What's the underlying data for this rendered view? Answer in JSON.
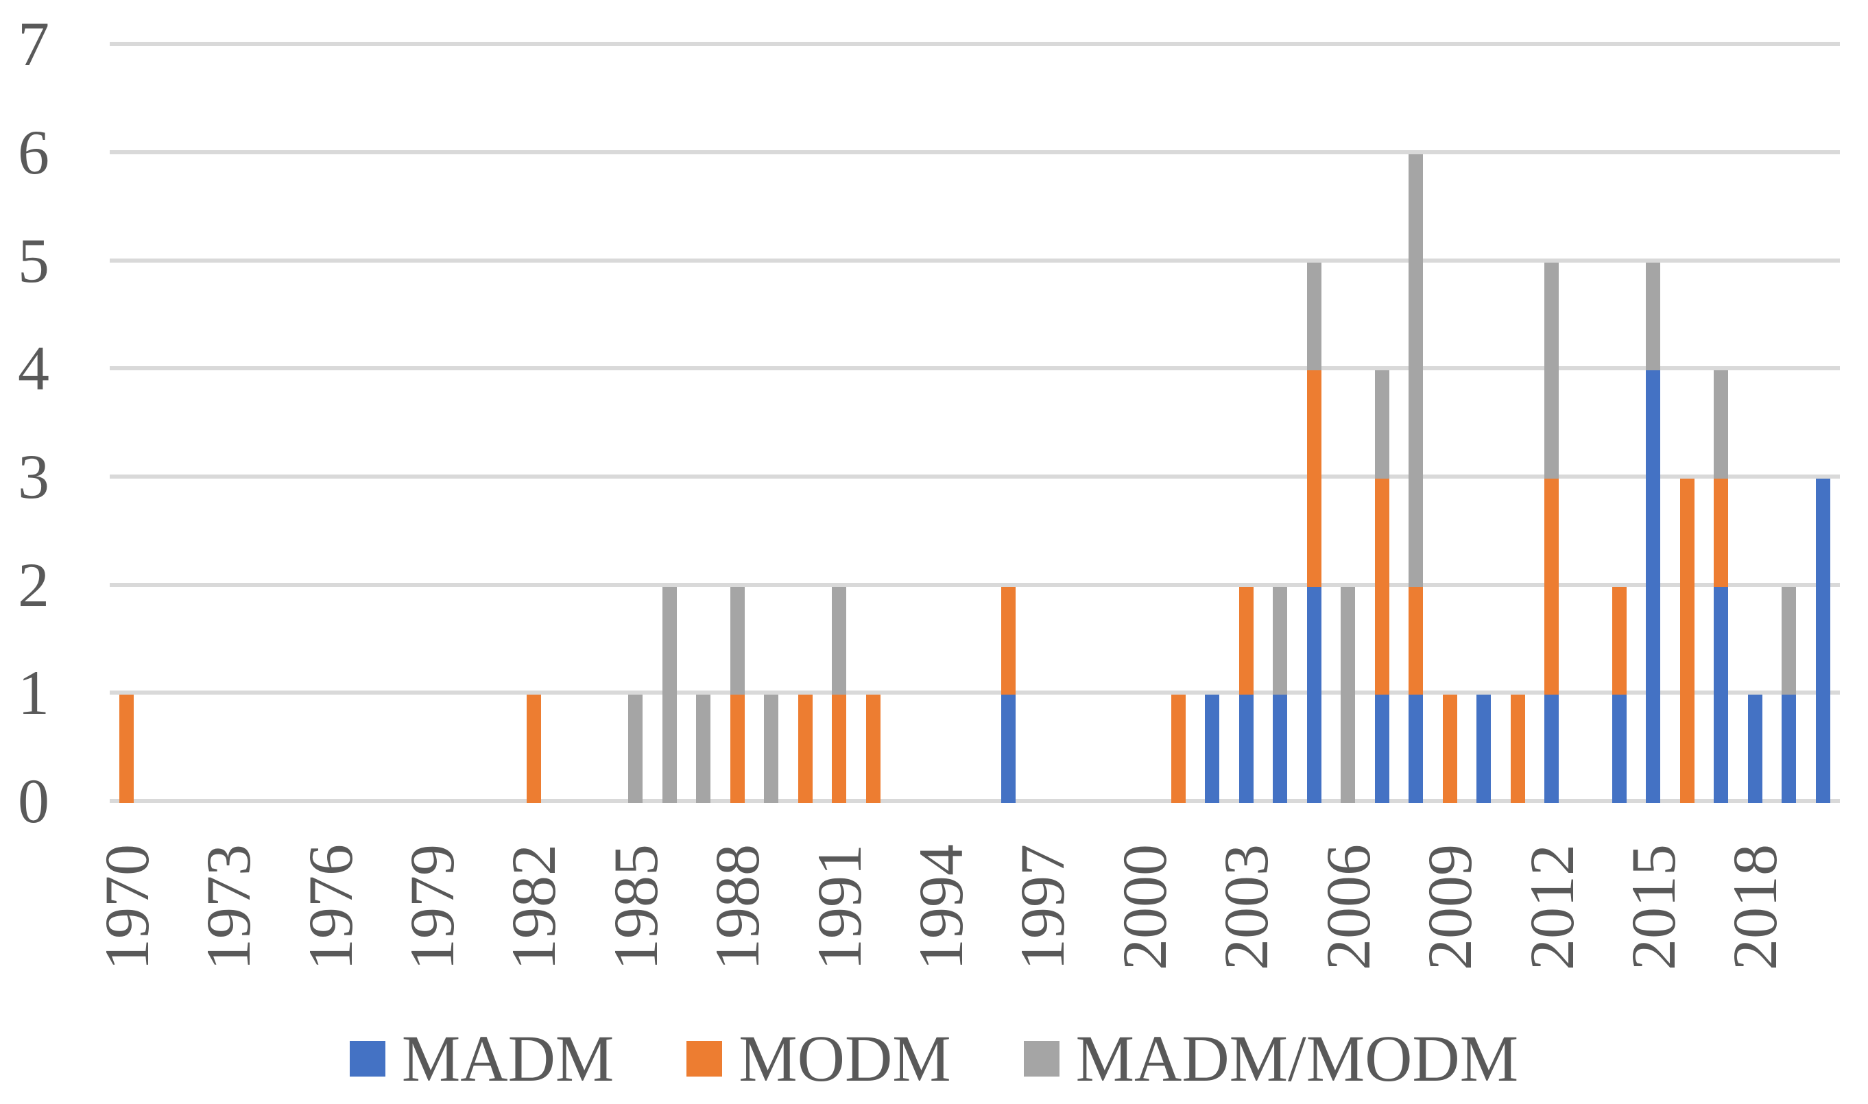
{
  "chart_data": {
    "type": "bar",
    "stacked": true,
    "title": "",
    "xlabel": "",
    "ylabel": "",
    "grid": "horizontal",
    "legend_position": "bottom",
    "categories": [
      1970,
      1971,
      1972,
      1973,
      1974,
      1975,
      1976,
      1977,
      1978,
      1979,
      1980,
      1981,
      1982,
      1983,
      1984,
      1985,
      1986,
      1987,
      1988,
      1989,
      1990,
      1991,
      1992,
      1993,
      1994,
      1995,
      1996,
      1997,
      1998,
      1999,
      2000,
      2001,
      2002,
      2003,
      2004,
      2005,
      2006,
      2007,
      2008,
      2009,
      2010,
      2011,
      2012,
      2013,
      2014,
      2015,
      2016,
      2017,
      2018,
      2019,
      2020
    ],
    "series": [
      {
        "name": "MADM",
        "color": "#4472C4",
        "values": [
          0,
          0,
          0,
          0,
          0,
          0,
          0,
          0,
          0,
          0,
          0,
          0,
          0,
          0,
          0,
          0,
          0,
          0,
          0,
          0,
          0,
          0,
          0,
          0,
          0,
          0,
          1,
          0,
          0,
          0,
          0,
          0,
          1,
          1,
          1,
          2,
          0,
          1,
          1,
          0,
          1,
          0,
          1,
          0,
          1,
          4,
          0,
          2,
          1,
          1,
          3
        ]
      },
      {
        "name": "MODM",
        "color": "#ED7D31",
        "values": [
          1,
          0,
          0,
          0,
          0,
          0,
          0,
          0,
          0,
          0,
          0,
          0,
          1,
          0,
          0,
          0,
          0,
          0,
          1,
          0,
          1,
          1,
          1,
          0,
          0,
          0,
          1,
          0,
          0,
          0,
          0,
          1,
          0,
          1,
          0,
          2,
          0,
          2,
          1,
          1,
          0,
          1,
          2,
          0,
          1,
          0,
          3,
          1,
          0,
          0,
          0
        ]
      },
      {
        "name": "MADM/MODM",
        "color": "#A5A5A5",
        "values": [
          0,
          0,
          0,
          0,
          0,
          0,
          0,
          0,
          0,
          0,
          0,
          0,
          0,
          0,
          0,
          1,
          2,
          1,
          1,
          1,
          0,
          1,
          0,
          0,
          0,
          0,
          0,
          0,
          0,
          0,
          0,
          0,
          0,
          0,
          1,
          1,
          2,
          1,
          4,
          0,
          0,
          0,
          2,
          0,
          0,
          1,
          0,
          1,
          0,
          1,
          0
        ]
      }
    ],
    "y_axis": {
      "min": 0,
      "max": 7,
      "step": 1,
      "tick_labels": [
        "0",
        "1",
        "2",
        "3",
        "4",
        "5",
        "6",
        "7"
      ]
    },
    "x_axis": {
      "tick_step_years": 3,
      "tick_labels": [
        "1970",
        "1973",
        "1976",
        "1979",
        "1982",
        "1985",
        "1988",
        "1991",
        "1994",
        "1997",
        "2000",
        "2003",
        "2006",
        "2009",
        "2012",
        "2015",
        "2018"
      ]
    }
  },
  "legend": {
    "items": [
      {
        "label": "MADM",
        "color": "#4472C4"
      },
      {
        "label": "MODM",
        "color": "#ED7D31"
      },
      {
        "label": "MADM/MODM",
        "color": "#A5A5A5"
      }
    ]
  },
  "colors": {
    "gridline": "#D9D9D9",
    "axis_text": "#595959",
    "background": "#FFFFFF"
  }
}
